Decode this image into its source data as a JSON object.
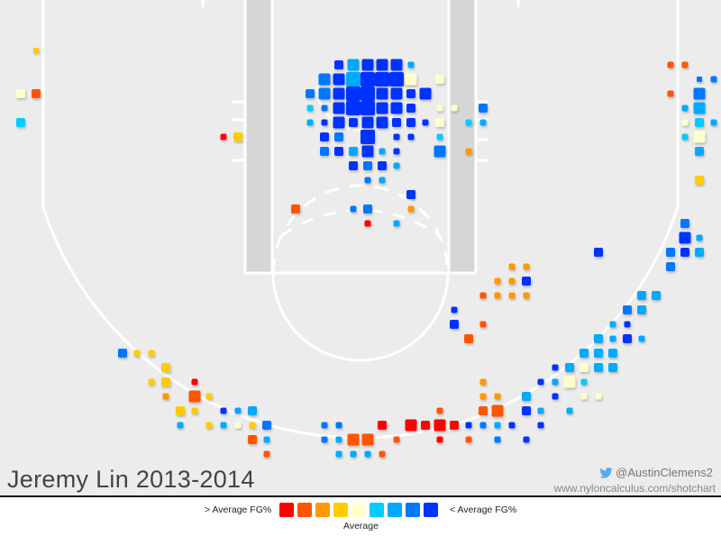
{
  "chart_data": {
    "type": "hexbin-shot-chart",
    "title": "Jeremy Lin 2013-2014",
    "credit_handle": "@AustinClemens2",
    "credit_url": "www.nyloncalculus.com/shotchart",
    "legend": {
      "left_label": "> Average FG%",
      "right_label": "< Average FG%",
      "center_label": "Average",
      "scale_colors": [
        "#ff0000",
        "#ff5500",
        "#ff9900",
        "#ffcc00",
        "#ffffcc",
        "#00ccff",
        "#00aaff",
        "#0077ff",
        "#0033ff"
      ]
    },
    "court_extent": {
      "x": [
        0,
        800
      ],
      "y": [
        0,
        550
      ]
    },
    "size_levels": [
      4,
      7,
      10,
      13,
      16
    ],
    "points": [
      [
        40,
        56,
        3,
        6
      ],
      [
        23,
        104,
        4,
        3
      ],
      [
        40,
        104,
        1,
        3
      ],
      [
        23,
        136,
        5,
        3
      ],
      [
        248,
        152,
        0,
        2
      ],
      [
        264,
        152,
        3,
        3
      ],
      [
        744,
        72,
        1,
        2
      ],
      [
        760,
        72,
        1,
        2
      ],
      [
        776,
        88,
        7,
        6
      ],
      [
        792,
        88,
        7,
        2
      ],
      [
        744,
        104,
        1,
        2
      ],
      [
        776,
        104,
        7,
        4
      ],
      [
        760,
        120,
        6,
        2
      ],
      [
        776,
        120,
        6,
        4
      ],
      [
        760,
        136,
        4,
        2
      ],
      [
        776,
        136,
        5,
        3
      ],
      [
        792,
        136,
        6,
        2
      ],
      [
        760,
        152,
        5,
        2
      ],
      [
        776,
        152,
        4,
        4
      ],
      [
        776,
        168,
        6,
        3
      ],
      [
        776,
        200,
        3,
        3
      ],
      [
        376,
        72,
        8,
        3
      ],
      [
        392,
        72,
        6,
        4
      ],
      [
        408,
        72,
        8,
        4
      ],
      [
        424,
        72,
        8,
        4
      ],
      [
        440,
        72,
        8,
        4
      ],
      [
        456,
        72,
        6,
        2
      ],
      [
        360,
        88,
        7,
        4
      ],
      [
        376,
        88,
        8,
        4
      ],
      [
        392,
        88,
        6,
        5
      ],
      [
        408,
        88,
        8,
        5
      ],
      [
        424,
        88,
        8,
        5
      ],
      [
        440,
        88,
        8,
        5
      ],
      [
        456,
        88,
        4,
        4
      ],
      [
        488,
        88,
        4,
        3
      ],
      [
        344,
        104,
        7,
        3
      ],
      [
        360,
        104,
        7,
        4
      ],
      [
        376,
        104,
        8,
        4
      ],
      [
        392,
        104,
        8,
        5
      ],
      [
        408,
        104,
        8,
        5
      ],
      [
        424,
        104,
        8,
        4
      ],
      [
        440,
        104,
        8,
        4
      ],
      [
        456,
        104,
        8,
        3
      ],
      [
        472,
        104,
        8,
        4
      ],
      [
        344,
        120,
        5,
        2
      ],
      [
        360,
        120,
        7,
        2
      ],
      [
        376,
        120,
        8,
        4
      ],
      [
        392,
        120,
        8,
        5
      ],
      [
        408,
        120,
        8,
        5
      ],
      [
        424,
        120,
        8,
        4
      ],
      [
        440,
        120,
        8,
        4
      ],
      [
        456,
        120,
        8,
        3
      ],
      [
        488,
        120,
        4,
        2
      ],
      [
        504,
        120,
        4,
        2
      ],
      [
        536,
        120,
        7,
        3
      ],
      [
        344,
        136,
        6,
        2
      ],
      [
        360,
        136,
        8,
        2
      ],
      [
        376,
        136,
        8,
        4
      ],
      [
        392,
        136,
        8,
        3
      ],
      [
        408,
        136,
        8,
        4
      ],
      [
        424,
        136,
        8,
        4
      ],
      [
        440,
        136,
        8,
        3
      ],
      [
        456,
        136,
        8,
        3
      ],
      [
        472,
        136,
        8,
        2
      ],
      [
        488,
        136,
        4,
        3
      ],
      [
        520,
        136,
        5,
        2
      ],
      [
        536,
        136,
        6,
        2
      ],
      [
        360,
        152,
        8,
        3
      ],
      [
        376,
        152,
        7,
        3
      ],
      [
        408,
        152,
        8,
        5
      ],
      [
        440,
        152,
        8,
        2
      ],
      [
        456,
        152,
        8,
        2
      ],
      [
        488,
        152,
        5,
        2
      ],
      [
        360,
        168,
        7,
        3
      ],
      [
        376,
        168,
        8,
        3
      ],
      [
        392,
        168,
        6,
        3
      ],
      [
        408,
        168,
        8,
        4
      ],
      [
        424,
        168,
        6,
        2
      ],
      [
        440,
        168,
        8,
        2
      ],
      [
        488,
        168,
        7,
        4
      ],
      [
        520,
        168,
        2,
        2
      ],
      [
        392,
        184,
        8,
        3
      ],
      [
        408,
        184,
        7,
        3
      ],
      [
        424,
        184,
        8,
        3
      ],
      [
        440,
        184,
        6,
        2
      ],
      [
        408,
        200,
        7,
        2
      ],
      [
        424,
        200,
        6,
        2
      ],
      [
        456,
        216,
        8,
        3
      ],
      [
        328,
        232,
        1,
        3
      ],
      [
        392,
        232,
        7,
        2
      ],
      [
        408,
        232,
        7,
        3
      ],
      [
        456,
        232,
        2,
        2
      ],
      [
        408,
        248,
        0,
        2
      ],
      [
        440,
        248,
        6,
        2
      ],
      [
        664,
        280,
        8,
        3
      ],
      [
        760,
        248,
        7,
        3
      ],
      [
        760,
        264,
        8,
        4
      ],
      [
        776,
        264,
        6,
        2
      ],
      [
        744,
        280,
        7,
        3
      ],
      [
        760,
        280,
        8,
        3
      ],
      [
        776,
        280,
        6,
        3
      ],
      [
        744,
        296,
        7,
        3
      ],
      [
        568,
        296,
        2,
        2
      ],
      [
        584,
        296,
        2,
        2
      ],
      [
        552,
        312,
        2,
        2
      ],
      [
        568,
        312,
        2,
        2
      ],
      [
        584,
        312,
        8,
        3
      ],
      [
        536,
        328,
        1,
        2
      ],
      [
        552,
        328,
        2,
        2
      ],
      [
        568,
        328,
        2,
        2
      ],
      [
        584,
        328,
        2,
        2
      ],
      [
        504,
        344,
        8,
        2
      ],
      [
        712,
        328,
        6,
        3
      ],
      [
        728,
        328,
        6,
        3
      ],
      [
        696,
        344,
        7,
        3
      ],
      [
        712,
        344,
        6,
        3
      ],
      [
        504,
        360,
        8,
        3
      ],
      [
        536,
        360,
        1,
        2
      ],
      [
        680,
        360,
        6,
        2
      ],
      [
        696,
        360,
        8,
        2
      ],
      [
        520,
        376,
        1,
        3
      ],
      [
        664,
        376,
        6,
        3
      ],
      [
        680,
        376,
        6,
        2
      ],
      [
        696,
        376,
        8,
        3
      ],
      [
        712,
        376,
        6,
        2
      ],
      [
        136,
        392,
        7,
        3
      ],
      [
        152,
        392,
        3,
        2
      ],
      [
        168,
        392,
        3,
        2
      ],
      [
        648,
        392,
        6,
        3
      ],
      [
        664,
        392,
        6,
        3
      ],
      [
        680,
        392,
        6,
        3
      ],
      [
        184,
        408,
        3,
        3
      ],
      [
        616,
        408,
        8,
        2
      ],
      [
        632,
        408,
        6,
        3
      ],
      [
        648,
        408,
        4,
        3
      ],
      [
        664,
        408,
        6,
        3
      ],
      [
        680,
        408,
        6,
        3
      ],
      [
        168,
        424,
        3,
        2
      ],
      [
        184,
        424,
        3,
        3
      ],
      [
        216,
        424,
        0,
        2
      ],
      [
        536,
        424,
        2,
        2
      ],
      [
        600,
        424,
        8,
        2
      ],
      [
        616,
        424,
        6,
        2
      ],
      [
        632,
        424,
        4,
        4
      ],
      [
        648,
        424,
        5,
        2
      ],
      [
        184,
        440,
        2,
        2
      ],
      [
        216,
        440,
        1,
        4
      ],
      [
        232,
        440,
        3,
        2
      ],
      [
        536,
        440,
        2,
        2
      ],
      [
        552,
        440,
        2,
        2
      ],
      [
        584,
        440,
        6,
        3
      ],
      [
        616,
        440,
        8,
        2
      ],
      [
        648,
        440,
        4,
        2
      ],
      [
        664,
        440,
        4,
        2
      ],
      [
        200,
        456,
        3,
        3
      ],
      [
        216,
        456,
        3,
        2
      ],
      [
        248,
        456,
        8,
        2
      ],
      [
        264,
        456,
        6,
        2
      ],
      [
        280,
        456,
        6,
        3
      ],
      [
        488,
        456,
        1,
        2
      ],
      [
        536,
        456,
        1,
        3
      ],
      [
        552,
        456,
        1,
        4
      ],
      [
        584,
        456,
        8,
        3
      ],
      [
        600,
        456,
        6,
        2
      ],
      [
        632,
        456,
        6,
        2
      ],
      [
        200,
        472,
        6,
        2
      ],
      [
        232,
        472,
        3,
        2
      ],
      [
        248,
        472,
        6,
        2
      ],
      [
        264,
        472,
        4,
        2
      ],
      [
        280,
        472,
        3,
        2
      ],
      [
        296,
        472,
        7,
        3
      ],
      [
        360,
        472,
        7,
        2
      ],
      [
        376,
        472,
        7,
        2
      ],
      [
        424,
        472,
        0,
        3
      ],
      [
        456,
        472,
        0,
        4
      ],
      [
        472,
        472,
        0,
        3
      ],
      [
        488,
        472,
        0,
        4
      ],
      [
        504,
        472,
        0,
        3
      ],
      [
        520,
        472,
        8,
        2
      ],
      [
        536,
        472,
        7,
        2
      ],
      [
        552,
        472,
        6,
        2
      ],
      [
        568,
        472,
        8,
        2
      ],
      [
        600,
        472,
        8,
        2
      ],
      [
        280,
        488,
        1,
        3
      ],
      [
        296,
        488,
        6,
        2
      ],
      [
        360,
        488,
        7,
        2
      ],
      [
        376,
        488,
        6,
        2
      ],
      [
        392,
        488,
        1,
        4
      ],
      [
        408,
        488,
        1,
        4
      ],
      [
        440,
        488,
        1,
        2
      ],
      [
        488,
        488,
        0,
        2
      ],
      [
        520,
        488,
        1,
        2
      ],
      [
        552,
        488,
        7,
        2
      ],
      [
        584,
        488,
        8,
        2
      ],
      [
        296,
        504,
        1,
        2
      ],
      [
        376,
        504,
        6,
        2
      ],
      [
        392,
        504,
        6,
        2
      ],
      [
        408,
        504,
        6,
        2
      ],
      [
        424,
        504,
        1,
        2
      ]
    ]
  }
}
